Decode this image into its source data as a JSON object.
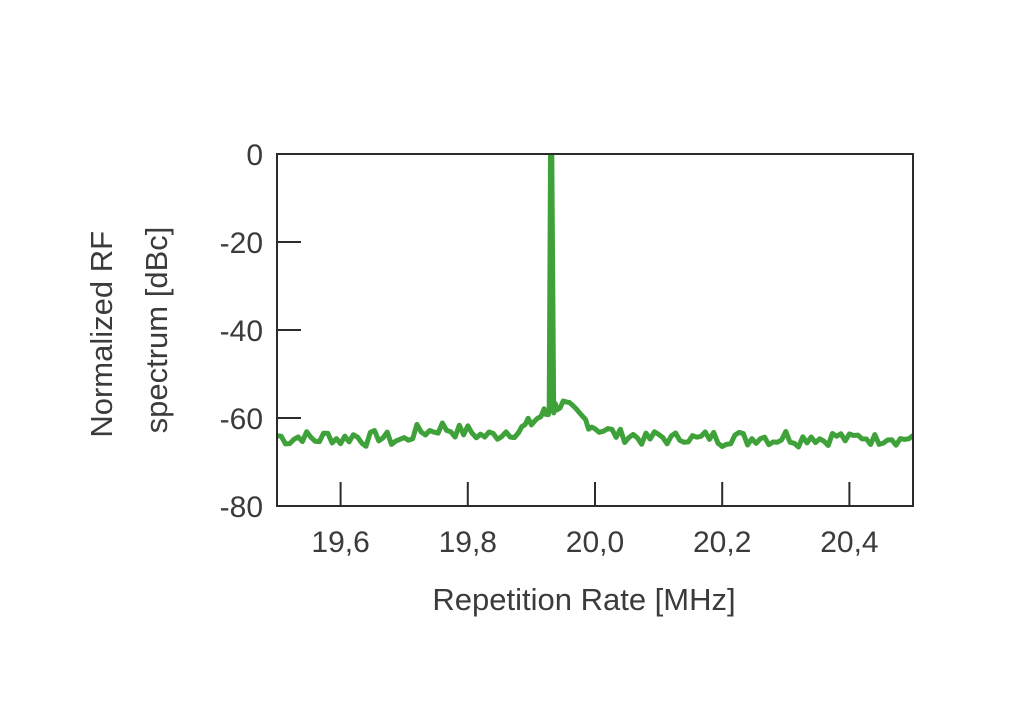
{
  "chart_data": {
    "type": "line",
    "title": "",
    "xlabel": "Repetition Rate [MHz]",
    "ylabel_lines": [
      "Normalized RF",
      "spectrum [dBc]"
    ],
    "xlim": [
      19.5,
      20.5
    ],
    "ylim": [
      -80,
      0
    ],
    "xticks": [
      19.6,
      19.8,
      20.0,
      20.2,
      20.4
    ],
    "xtick_labels": [
      "19,6",
      "19,8",
      "20,0",
      "20,2",
      "20,4"
    ],
    "yticks": [
      0,
      -20,
      -40,
      -60,
      -80
    ],
    "ytick_labels": [
      "0",
      "-20",
      "-40",
      "-60",
      "-80"
    ],
    "grid": false,
    "legend": "none",
    "series": [
      {
        "color": "#3fa13a",
        "x": [
          19.5,
          19.52,
          19.54,
          19.56,
          19.58,
          19.6,
          19.62,
          19.64,
          19.66,
          19.68,
          19.7,
          19.72,
          19.74,
          19.76,
          19.78,
          19.8,
          19.82,
          19.84,
          19.86,
          19.88,
          19.89,
          19.9,
          19.91,
          19.92,
          19.925,
          19.928,
          19.93,
          19.932,
          19.935,
          19.94,
          19.95,
          19.96,
          19.97,
          19.98,
          19.99,
          20.0,
          20.02,
          20.04,
          20.06,
          20.08,
          20.1,
          20.12,
          20.14,
          20.16,
          20.18,
          20.2,
          20.22,
          20.24,
          20.26,
          20.28,
          20.3,
          20.32,
          20.34,
          20.36,
          20.38,
          20.4,
          20.42,
          20.44,
          20.46,
          20.48,
          20.5
        ],
        "y": [
          -64,
          -65,
          -64,
          -65,
          -64,
          -65,
          -64,
          -65,
          -64,
          -65,
          -65,
          -63,
          -63,
          -62,
          -63,
          -63,
          -64,
          -64,
          -63,
          -63,
          -62,
          -61,
          -60,
          -59,
          -59,
          -58,
          -0.5,
          -0.5,
          -58,
          -57,
          -57,
          -58,
          -59,
          -60,
          -61,
          -62,
          -63,
          -64,
          -64,
          -65,
          -64,
          -65,
          -64,
          -65,
          -64,
          -65,
          -64,
          -65,
          -64,
          -65,
          -64,
          -65,
          -64,
          -65,
          -64,
          -65,
          -64,
          -65,
          -64,
          -65,
          -64
        ]
      }
    ]
  }
}
